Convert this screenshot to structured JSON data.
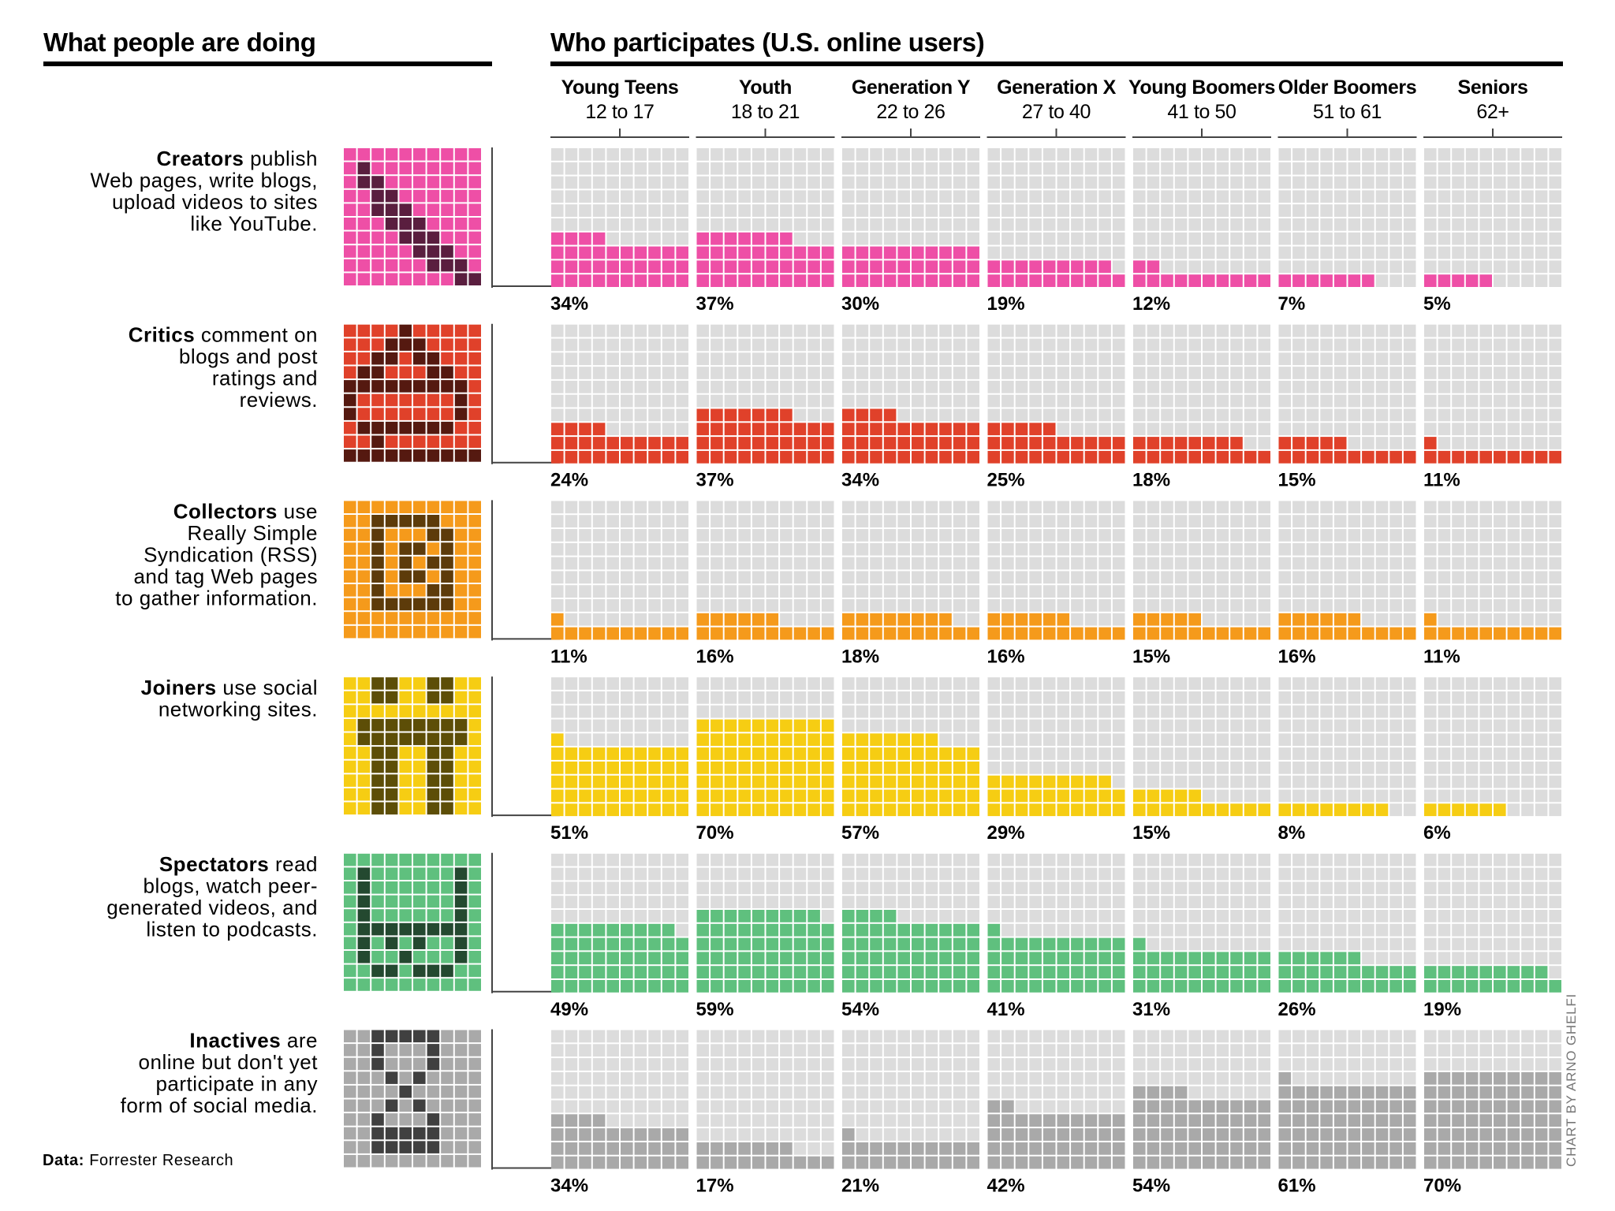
{
  "headers": {
    "left": "What people are doing",
    "right": "Who participates (U.S. online users)"
  },
  "footer": {
    "source_label": "Data:",
    "source_name": "Forrester Research",
    "credit": "CHART BY ARNO GHELFI"
  },
  "chart_data": {
    "type": "waffle-bar",
    "title": "Who participates (U.S. online users)",
    "unit": "percent of group",
    "groups": [
      {
        "name": "Young Teens",
        "range": "12 to 17"
      },
      {
        "name": "Youth",
        "range": "18 to 21"
      },
      {
        "name": "Generation Y",
        "range": "22 to 26"
      },
      {
        "name": "Generation X",
        "range": "27 to 40"
      },
      {
        "name": "Young Boomers",
        "range": "41 to 50"
      },
      {
        "name": "Older Boomers",
        "range": "51 to 61"
      },
      {
        "name": "Seniors",
        "range": "62+"
      }
    ],
    "series": [
      {
        "name": "Creators",
        "desc": [
          "publish",
          "Web pages, write blogs,",
          "upload videos to sites",
          "like YouTube."
        ],
        "color": "#ee4fa6",
        "icon": "creator-pencil-icon",
        "values": [
          34,
          37,
          30,
          19,
          12,
          7,
          5
        ]
      },
      {
        "name": "Critics",
        "desc": [
          "comment on",
          "blogs and post",
          "ratings and",
          "reviews."
        ],
        "color": "#e0412a",
        "icon": "critic-speech-icon",
        "values": [
          24,
          37,
          34,
          25,
          18,
          15,
          11
        ]
      },
      {
        "name": "Collectors",
        "desc": [
          "use",
          "Really Simple",
          "Syndication (RSS)",
          "and tag Web pages",
          "to gather information."
        ],
        "color": "#f59a1b",
        "icon": "collector-rss-icon",
        "values": [
          11,
          16,
          18,
          16,
          15,
          16,
          11
        ]
      },
      {
        "name": "Joiners",
        "desc": [
          "use social",
          "networking sites."
        ],
        "color": "#f6cd13",
        "icon": "joiner-people-icon",
        "values": [
          51,
          70,
          57,
          29,
          15,
          8,
          6
        ]
      },
      {
        "name": "Spectators",
        "desc": [
          "read",
          "blogs, watch peer-",
          "generated videos, and",
          "listen to podcasts."
        ],
        "color": "#5fc07e",
        "icon": "spectator-screen-icon",
        "values": [
          49,
          59,
          54,
          41,
          31,
          26,
          19
        ]
      },
      {
        "name": "Inactives",
        "desc": [
          "are",
          "online but don't yet",
          "participate in any",
          "form of social media."
        ],
        "color": "#a9a9a9",
        "icon": "inactive-hourglass-icon",
        "values": [
          34,
          17,
          21,
          42,
          54,
          61,
          70
        ]
      }
    ]
  }
}
